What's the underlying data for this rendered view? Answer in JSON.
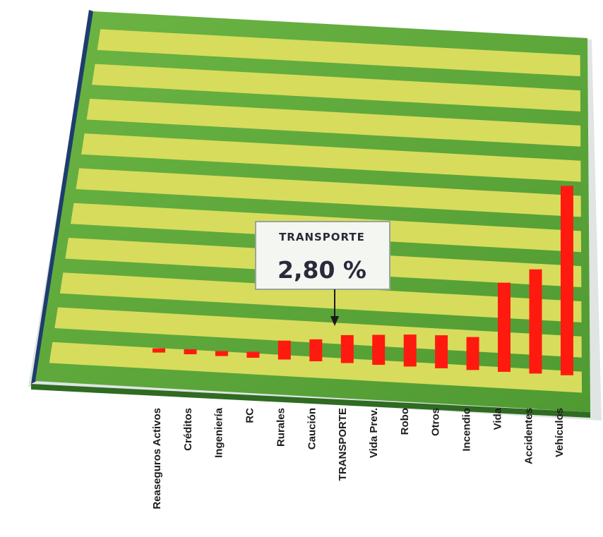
{
  "chart_data": {
    "type": "bar",
    "title": "",
    "xlabel": "",
    "ylabel": "",
    "categories": [
      "Reaseguros Activos",
      "Créditos",
      "Ingeniería",
      "RC",
      "Rurales",
      "Caución",
      "TRANSPORTE",
      "Vida Prev.",
      "Robo",
      "Otros",
      "Incendio",
      "Vida",
      "Accidentes",
      "Vehículos"
    ],
    "values": [
      0.3,
      0.5,
      0.5,
      0.6,
      1.9,
      2.2,
      2.8,
      3.0,
      3.2,
      3.3,
      3.3,
      8.9,
      10.4,
      18.9
    ],
    "ylim": [
      0,
      33
    ],
    "grid": true,
    "highlight": {
      "category": "TRANSPORTE",
      "label": "TRANSPORTE",
      "value_text": "2,80 %"
    },
    "colors": {
      "bar": "#ff1a10",
      "board": "#5fa83a",
      "stripe": "#d7dc5c",
      "board_edge": "#2f6b22"
    }
  }
}
